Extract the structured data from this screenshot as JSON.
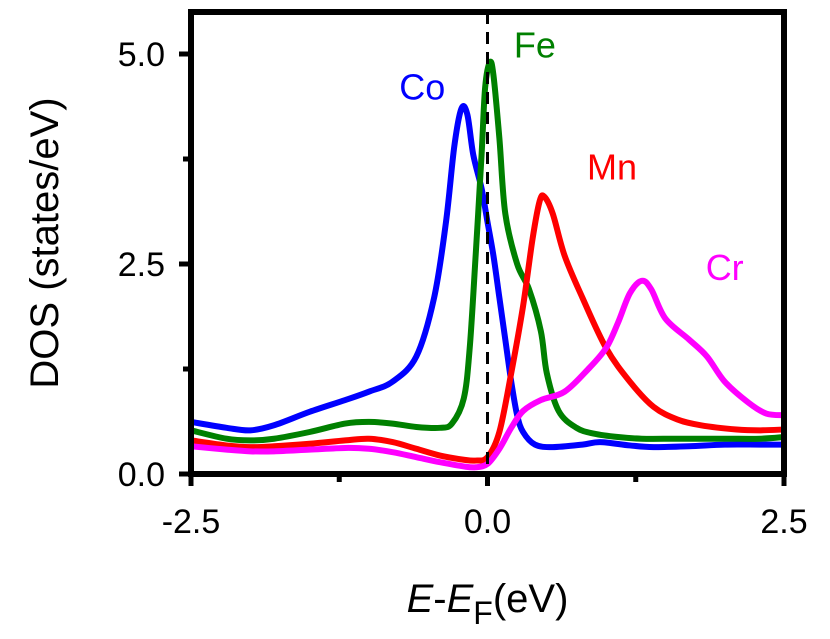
{
  "chart_data": {
    "type": "line",
    "title": "",
    "xlabel": {
      "italic_main": "E",
      "dash": "-",
      "italic_sub_base": "E",
      "subscript": "F",
      "unit": "(eV)"
    },
    "ylabel": "DOS (states/eV)",
    "xlim": [
      -2.5,
      2.5
    ],
    "ylim": [
      0.0,
      5.5
    ],
    "x_ticks": [
      {
        "value": -2.5,
        "label": "-2.5"
      },
      {
        "value": 0.0,
        "label": "0.0"
      },
      {
        "value": 2.5,
        "label": "2.5"
      }
    ],
    "y_ticks": [
      {
        "value": 0.0,
        "label": "0.0"
      },
      {
        "value": 2.5,
        "label": "2.5"
      },
      {
        "value": 5.0,
        "label": "5.0"
      }
    ],
    "x_minor_ticks": [
      -1.25,
      1.25
    ],
    "y_minor_ticks": [
      1.25,
      3.75
    ],
    "fermi_line_x": 0.0,
    "series": [
      {
        "name": "Co",
        "color": "#0000ff",
        "label_at": [
          -0.55,
          4.6
        ],
        "points": [
          [
            -2.5,
            0.62
          ],
          [
            -2.2,
            0.55
          ],
          [
            -2.0,
            0.52
          ],
          [
            -1.8,
            0.58
          ],
          [
            -1.5,
            0.74
          ],
          [
            -1.2,
            0.88
          ],
          [
            -1.0,
            0.98
          ],
          [
            -0.8,
            1.1
          ],
          [
            -0.6,
            1.4
          ],
          [
            -0.45,
            2.1
          ],
          [
            -0.35,
            3.0
          ],
          [
            -0.28,
            3.9
          ],
          [
            -0.22,
            4.35
          ],
          [
            -0.17,
            4.28
          ],
          [
            -0.12,
            3.8
          ],
          [
            -0.05,
            3.4
          ],
          [
            0.0,
            3.0
          ],
          [
            0.05,
            2.6
          ],
          [
            0.1,
            2.1
          ],
          [
            0.15,
            1.6
          ],
          [
            0.2,
            1.1
          ],
          [
            0.25,
            0.7
          ],
          [
            0.3,
            0.5
          ],
          [
            0.4,
            0.35
          ],
          [
            0.55,
            0.32
          ],
          [
            0.8,
            0.35
          ],
          [
            0.95,
            0.38
          ],
          [
            1.2,
            0.34
          ],
          [
            1.4,
            0.32
          ],
          [
            1.7,
            0.33
          ],
          [
            2.0,
            0.35
          ],
          [
            2.3,
            0.35
          ],
          [
            2.5,
            0.35
          ]
        ]
      },
      {
        "name": "Fe",
        "color": "#008000",
        "label_at": [
          0.4,
          5.1
        ],
        "points": [
          [
            -2.5,
            0.52
          ],
          [
            -2.2,
            0.42
          ],
          [
            -2.0,
            0.4
          ],
          [
            -1.8,
            0.42
          ],
          [
            -1.5,
            0.5
          ],
          [
            -1.2,
            0.6
          ],
          [
            -1.0,
            0.62
          ],
          [
            -0.8,
            0.6
          ],
          [
            -0.6,
            0.56
          ],
          [
            -0.4,
            0.55
          ],
          [
            -0.3,
            0.6
          ],
          [
            -0.2,
            0.9
          ],
          [
            -0.15,
            1.5
          ],
          [
            -0.1,
            2.6
          ],
          [
            -0.05,
            3.8
          ],
          [
            -0.02,
            4.6
          ],
          [
            0.02,
            4.9
          ],
          [
            0.05,
            4.75
          ],
          [
            0.1,
            4.0
          ],
          [
            0.15,
            3.1
          ],
          [
            0.25,
            2.5
          ],
          [
            0.35,
            2.2
          ],
          [
            0.45,
            1.7
          ],
          [
            0.5,
            1.2
          ],
          [
            0.6,
            0.75
          ],
          [
            0.75,
            0.55
          ],
          [
            0.9,
            0.48
          ],
          [
            1.1,
            0.44
          ],
          [
            1.3,
            0.42
          ],
          [
            1.6,
            0.42
          ],
          [
            2.0,
            0.42
          ],
          [
            2.3,
            0.42
          ],
          [
            2.5,
            0.44
          ]
        ]
      },
      {
        "name": "Mn",
        "color": "#ff0000",
        "label_at": [
          1.05,
          3.65
        ],
        "points": [
          [
            -2.5,
            0.4
          ],
          [
            -2.2,
            0.34
          ],
          [
            -2.0,
            0.32
          ],
          [
            -1.8,
            0.33
          ],
          [
            -1.5,
            0.36
          ],
          [
            -1.2,
            0.4
          ],
          [
            -1.0,
            0.42
          ],
          [
            -0.8,
            0.38
          ],
          [
            -0.6,
            0.3
          ],
          [
            -0.4,
            0.22
          ],
          [
            -0.2,
            0.17
          ],
          [
            -0.1,
            0.16
          ],
          [
            0.0,
            0.2
          ],
          [
            0.1,
            0.5
          ],
          [
            0.2,
            1.2
          ],
          [
            0.3,
            2.0
          ],
          [
            0.38,
            2.8
          ],
          [
            0.44,
            3.25
          ],
          [
            0.48,
            3.3
          ],
          [
            0.55,
            3.1
          ],
          [
            0.65,
            2.6
          ],
          [
            0.8,
            2.1
          ],
          [
            1.0,
            1.5
          ],
          [
            1.2,
            1.1
          ],
          [
            1.4,
            0.8
          ],
          [
            1.6,
            0.65
          ],
          [
            1.8,
            0.58
          ],
          [
            2.1,
            0.53
          ],
          [
            2.3,
            0.52
          ],
          [
            2.5,
            0.53
          ]
        ]
      },
      {
        "name": "Cr",
        "color": "#ff00ff",
        "label_at": [
          2.0,
          2.45
        ],
        "points": [
          [
            -2.5,
            0.33
          ],
          [
            -2.2,
            0.29
          ],
          [
            -2.0,
            0.27
          ],
          [
            -1.8,
            0.27
          ],
          [
            -1.5,
            0.29
          ],
          [
            -1.2,
            0.31
          ],
          [
            -1.0,
            0.3
          ],
          [
            -0.8,
            0.26
          ],
          [
            -0.6,
            0.2
          ],
          [
            -0.4,
            0.14
          ],
          [
            -0.2,
            0.09
          ],
          [
            -0.1,
            0.08
          ],
          [
            0.0,
            0.12
          ],
          [
            0.1,
            0.3
          ],
          [
            0.2,
            0.55
          ],
          [
            0.3,
            0.75
          ],
          [
            0.45,
            0.88
          ],
          [
            0.65,
            0.98
          ],
          [
            0.85,
            1.25
          ],
          [
            1.0,
            1.5
          ],
          [
            1.1,
            1.8
          ],
          [
            1.2,
            2.15
          ],
          [
            1.3,
            2.3
          ],
          [
            1.38,
            2.2
          ],
          [
            1.5,
            1.85
          ],
          [
            1.7,
            1.6
          ],
          [
            1.85,
            1.4
          ],
          [
            2.0,
            1.1
          ],
          [
            2.2,
            0.85
          ],
          [
            2.35,
            0.72
          ],
          [
            2.5,
            0.7
          ]
        ]
      }
    ]
  }
}
